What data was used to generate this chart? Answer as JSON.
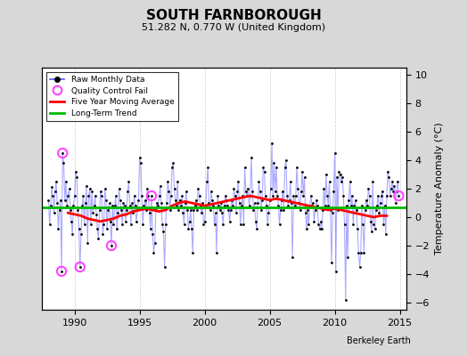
{
  "title": "SOUTH FARNBOROUGH",
  "subtitle": "51.282 N, 0.770 W (United Kingdom)",
  "ylabel": "Temperature Anomaly (°C)",
  "watermark": "Berkeley Earth",
  "ylim": [
    -6.5,
    10.5
  ],
  "xlim": [
    1987.5,
    2015.5
  ],
  "yticks": [
    -6,
    -4,
    -2,
    0,
    2,
    4,
    6,
    8,
    10
  ],
  "xticks": [
    1990,
    1995,
    2000,
    2005,
    2010,
    2015
  ],
  "fig_bg_color": "#d8d8d8",
  "plot_bg_color": "#ffffff",
  "grid_color": "#cccccc",
  "line_color": "#5555ff",
  "line_alpha": 0.5,
  "marker_color": "#000000",
  "moving_avg_color": "#ff0000",
  "trend_color": "#00bb00",
  "qc_fail_color": "#ff44ff",
  "trend_value": 0.68,
  "raw_data": [
    [
      1988.0,
      1.2
    ],
    [
      1988.083,
      -0.5
    ],
    [
      1988.167,
      0.8
    ],
    [
      1988.25,
      2.1
    ],
    [
      1988.333,
      1.5
    ],
    [
      1988.417,
      0.3
    ],
    [
      1988.5,
      1.8
    ],
    [
      1988.583,
      2.5
    ],
    [
      1988.667,
      1.0
    ],
    [
      1988.75,
      -0.8
    ],
    [
      1988.833,
      0.5
    ],
    [
      1988.917,
      1.2
    ],
    [
      1989.0,
      -3.8
    ],
    [
      1989.083,
      4.5
    ],
    [
      1989.167,
      3.8
    ],
    [
      1989.25,
      1.2
    ],
    [
      1989.333,
      2.5
    ],
    [
      1989.417,
      0.8
    ],
    [
      1989.5,
      1.5
    ],
    [
      1989.583,
      2.0
    ],
    [
      1989.667,
      0.5
    ],
    [
      1989.75,
      -0.3
    ],
    [
      1989.833,
      -1.2
    ],
    [
      1989.917,
      0.8
    ],
    [
      1990.0,
      1.5
    ],
    [
      1990.083,
      3.2
    ],
    [
      1990.167,
      2.8
    ],
    [
      1990.25,
      0.5
    ],
    [
      1990.333,
      -0.8
    ],
    [
      1990.417,
      -3.5
    ],
    [
      1990.5,
      -1.2
    ],
    [
      1990.583,
      0.8
    ],
    [
      1990.667,
      1.5
    ],
    [
      1990.75,
      -0.5
    ],
    [
      1990.833,
      1.0
    ],
    [
      1990.917,
      2.2
    ],
    [
      1991.0,
      -1.8
    ],
    [
      1991.083,
      1.5
    ],
    [
      1991.167,
      2.0
    ],
    [
      1991.25,
      -0.5
    ],
    [
      1991.333,
      1.8
    ],
    [
      1991.417,
      0.3
    ],
    [
      1991.5,
      0.8
    ],
    [
      1991.583,
      1.5
    ],
    [
      1991.667,
      0.2
    ],
    [
      1991.75,
      -0.8
    ],
    [
      1991.833,
      -1.5
    ],
    [
      1991.917,
      0.5
    ],
    [
      1992.0,
      1.8
    ],
    [
      1992.083,
      1.5
    ],
    [
      1992.167,
      -1.2
    ],
    [
      1992.25,
      -0.5
    ],
    [
      1992.333,
      2.0
    ],
    [
      1992.417,
      1.2
    ],
    [
      1992.5,
      -0.8
    ],
    [
      1992.583,
      0.5
    ],
    [
      1992.667,
      1.0
    ],
    [
      1992.75,
      -0.3
    ],
    [
      1992.833,
      -2.0
    ],
    [
      1992.917,
      0.8
    ],
    [
      1993.0,
      -0.5
    ],
    [
      1993.083,
      0.8
    ],
    [
      1993.167,
      1.5
    ],
    [
      1993.25,
      -0.8
    ],
    [
      1993.333,
      0.3
    ],
    [
      1993.417,
      2.0
    ],
    [
      1993.5,
      1.2
    ],
    [
      1993.583,
      0.5
    ],
    [
      1993.667,
      -0.5
    ],
    [
      1993.75,
      1.0
    ],
    [
      1993.833,
      0.8
    ],
    [
      1993.917,
      -0.3
    ],
    [
      1994.0,
      0.5
    ],
    [
      1994.083,
      1.8
    ],
    [
      1994.167,
      2.5
    ],
    [
      1994.25,
      0.8
    ],
    [
      1994.333,
      -0.5
    ],
    [
      1994.417,
      1.0
    ],
    [
      1994.5,
      0.3
    ],
    [
      1994.583,
      1.5
    ],
    [
      1994.667,
      0.8
    ],
    [
      1994.75,
      -0.3
    ],
    [
      1994.833,
      0.5
    ],
    [
      1994.917,
      1.2
    ],
    [
      1995.0,
      4.2
    ],
    [
      1995.083,
      3.8
    ],
    [
      1995.167,
      1.5
    ],
    [
      1995.25,
      -0.5
    ],
    [
      1995.333,
      0.8
    ],
    [
      1995.417,
      1.2
    ],
    [
      1995.5,
      0.5
    ],
    [
      1995.583,
      2.0
    ],
    [
      1995.667,
      1.5
    ],
    [
      1995.75,
      0.3
    ],
    [
      1995.833,
      -0.8
    ],
    [
      1995.917,
      1.5
    ],
    [
      1996.0,
      -1.2
    ],
    [
      1996.083,
      -2.5
    ],
    [
      1996.167,
      -1.8
    ],
    [
      1996.25,
      0.5
    ],
    [
      1996.333,
      1.0
    ],
    [
      1996.417,
      0.8
    ],
    [
      1996.5,
      1.5
    ],
    [
      1996.583,
      2.2
    ],
    [
      1996.667,
      1.0
    ],
    [
      1996.75,
      -0.5
    ],
    [
      1996.833,
      -1.0
    ],
    [
      1996.917,
      -3.5
    ],
    [
      1997.0,
      -0.5
    ],
    [
      1997.083,
      1.0
    ],
    [
      1997.167,
      2.5
    ],
    [
      1997.25,
      1.8
    ],
    [
      1997.333,
      0.5
    ],
    [
      1997.417,
      1.5
    ],
    [
      1997.5,
      3.5
    ],
    [
      1997.583,
      3.8
    ],
    [
      1997.667,
      2.0
    ],
    [
      1997.75,
      1.2
    ],
    [
      1997.833,
      0.8
    ],
    [
      1997.917,
      2.5
    ],
    [
      1998.0,
      0.5
    ],
    [
      1998.083,
      1.2
    ],
    [
      1998.167,
      0.8
    ],
    [
      1998.25,
      1.5
    ],
    [
      1998.333,
      0.3
    ],
    [
      1998.417,
      -0.5
    ],
    [
      1998.5,
      1.0
    ],
    [
      1998.583,
      1.8
    ],
    [
      1998.667,
      0.5
    ],
    [
      1998.75,
      -0.8
    ],
    [
      1998.833,
      -0.3
    ],
    [
      1998.917,
      0.5
    ],
    [
      1999.0,
      -0.8
    ],
    [
      1999.083,
      -2.5
    ],
    [
      1999.167,
      0.5
    ],
    [
      1999.25,
      0.8
    ],
    [
      1999.333,
      1.2
    ],
    [
      1999.417,
      0.5
    ],
    [
      1999.5,
      2.0
    ],
    [
      1999.583,
      1.5
    ],
    [
      1999.667,
      0.8
    ],
    [
      1999.75,
      0.3
    ],
    [
      1999.833,
      1.0
    ],
    [
      1999.917,
      -0.5
    ],
    [
      2000.0,
      -0.3
    ],
    [
      2000.083,
      0.8
    ],
    [
      2000.167,
      2.5
    ],
    [
      2000.25,
      3.5
    ],
    [
      2000.333,
      1.0
    ],
    [
      2000.417,
      0.5
    ],
    [
      2000.5,
      1.8
    ],
    [
      2000.583,
      1.2
    ],
    [
      2000.667,
      0.8
    ],
    [
      2000.75,
      -0.5
    ],
    [
      2000.833,
      0.3
    ],
    [
      2000.917,
      -2.5
    ],
    [
      2001.0,
      1.5
    ],
    [
      2001.083,
      0.8
    ],
    [
      2001.167,
      0.5
    ],
    [
      2001.25,
      1.0
    ],
    [
      2001.333,
      0.3
    ],
    [
      2001.417,
      -0.5
    ],
    [
      2001.5,
      0.8
    ],
    [
      2001.583,
      1.5
    ],
    [
      2001.667,
      1.2
    ],
    [
      2001.75,
      0.8
    ],
    [
      2001.833,
      0.5
    ],
    [
      2001.917,
      -0.3
    ],
    [
      2002.0,
      0.5
    ],
    [
      2002.083,
      1.2
    ],
    [
      2002.167,
      0.8
    ],
    [
      2002.25,
      2.0
    ],
    [
      2002.333,
      1.5
    ],
    [
      2002.417,
      0.3
    ],
    [
      2002.5,
      1.8
    ],
    [
      2002.583,
      2.5
    ],
    [
      2002.667,
      1.0
    ],
    [
      2002.75,
      -0.5
    ],
    [
      2002.833,
      0.8
    ],
    [
      2002.917,
      1.5
    ],
    [
      2003.0,
      -0.5
    ],
    [
      2003.083,
      3.5
    ],
    [
      2003.167,
      1.8
    ],
    [
      2003.25,
      1.5
    ],
    [
      2003.333,
      2.0
    ],
    [
      2003.417,
      0.8
    ],
    [
      2003.5,
      1.5
    ],
    [
      2003.583,
      4.2
    ],
    [
      2003.667,
      1.8
    ],
    [
      2003.75,
      0.5
    ],
    [
      2003.833,
      1.0
    ],
    [
      2003.917,
      -0.3
    ],
    [
      2004.0,
      -0.8
    ],
    [
      2004.083,
      1.0
    ],
    [
      2004.167,
      2.5
    ],
    [
      2004.25,
      1.8
    ],
    [
      2004.333,
      0.5
    ],
    [
      2004.417,
      1.2
    ],
    [
      2004.5,
      3.5
    ],
    [
      2004.583,
      3.2
    ],
    [
      2004.667,
      1.5
    ],
    [
      2004.75,
      0.8
    ],
    [
      2004.833,
      -0.5
    ],
    [
      2004.917,
      0.3
    ],
    [
      2005.0,
      1.2
    ],
    [
      2005.083,
      2.0
    ],
    [
      2005.167,
      5.2
    ],
    [
      2005.25,
      1.5
    ],
    [
      2005.333,
      3.8
    ],
    [
      2005.417,
      1.8
    ],
    [
      2005.5,
      3.5
    ],
    [
      2005.583,
      1.5
    ],
    [
      2005.667,
      0.8
    ],
    [
      2005.75,
      -0.5
    ],
    [
      2005.833,
      0.5
    ],
    [
      2005.917,
      1.2
    ],
    [
      2006.0,
      1.8
    ],
    [
      2006.083,
      0.5
    ],
    [
      2006.167,
      3.5
    ],
    [
      2006.25,
      4.0
    ],
    [
      2006.333,
      1.5
    ],
    [
      2006.417,
      0.8
    ],
    [
      2006.5,
      1.2
    ],
    [
      2006.583,
      2.5
    ],
    [
      2006.667,
      1.0
    ],
    [
      2006.75,
      -2.8
    ],
    [
      2006.833,
      1.5
    ],
    [
      2006.917,
      0.8
    ],
    [
      2007.0,
      1.5
    ],
    [
      2007.083,
      3.5
    ],
    [
      2007.167,
      2.0
    ],
    [
      2007.25,
      1.0
    ],
    [
      2007.333,
      0.5
    ],
    [
      2007.417,
      1.8
    ],
    [
      2007.5,
      3.2
    ],
    [
      2007.583,
      1.5
    ],
    [
      2007.667,
      2.8
    ],
    [
      2007.75,
      0.3
    ],
    [
      2007.833,
      -0.8
    ],
    [
      2007.917,
      0.5
    ],
    [
      2008.0,
      -0.5
    ],
    [
      2008.083,
      0.8
    ],
    [
      2008.167,
      1.5
    ],
    [
      2008.25,
      0.8
    ],
    [
      2008.333,
      1.0
    ],
    [
      2008.417,
      -0.3
    ],
    [
      2008.5,
      0.5
    ],
    [
      2008.583,
      1.2
    ],
    [
      2008.667,
      0.8
    ],
    [
      2008.75,
      -0.5
    ],
    [
      2008.833,
      -0.8
    ],
    [
      2008.917,
      -0.3
    ],
    [
      2009.0,
      -0.8
    ],
    [
      2009.083,
      0.5
    ],
    [
      2009.167,
      2.0
    ],
    [
      2009.25,
      0.8
    ],
    [
      2009.333,
      3.0
    ],
    [
      2009.417,
      1.5
    ],
    [
      2009.5,
      0.8
    ],
    [
      2009.583,
      2.5
    ],
    [
      2009.667,
      0.5
    ],
    [
      2009.75,
      -3.2
    ],
    [
      2009.833,
      0.3
    ],
    [
      2009.917,
      1.8
    ],
    [
      2010.0,
      4.5
    ],
    [
      2010.083,
      -3.8
    ],
    [
      2010.167,
      2.8
    ],
    [
      2010.25,
      0.5
    ],
    [
      2010.333,
      3.2
    ],
    [
      2010.417,
      3.0
    ],
    [
      2010.5,
      2.5
    ],
    [
      2010.583,
      2.8
    ],
    [
      2010.667,
      1.5
    ],
    [
      2010.75,
      -0.5
    ],
    [
      2010.833,
      -5.8
    ],
    [
      2010.917,
      0.8
    ],
    [
      2011.0,
      -2.8
    ],
    [
      2011.083,
      1.2
    ],
    [
      2011.167,
      2.5
    ],
    [
      2011.25,
      0.8
    ],
    [
      2011.333,
      1.5
    ],
    [
      2011.417,
      -0.5
    ],
    [
      2011.5,
      0.8
    ],
    [
      2011.583,
      1.2
    ],
    [
      2011.667,
      0.5
    ],
    [
      2011.75,
      -0.8
    ],
    [
      2011.833,
      -2.5
    ],
    [
      2011.917,
      -3.5
    ],
    [
      2012.0,
      -2.5
    ],
    [
      2012.083,
      0.8
    ],
    [
      2012.167,
      -0.5
    ],
    [
      2012.25,
      -2.5
    ],
    [
      2012.333,
      0.5
    ],
    [
      2012.417,
      1.2
    ],
    [
      2012.5,
      0.8
    ],
    [
      2012.583,
      2.0
    ],
    [
      2012.667,
      1.5
    ],
    [
      2012.75,
      -0.3
    ],
    [
      2012.833,
      -1.0
    ],
    [
      2012.917,
      2.5
    ],
    [
      2013.0,
      -0.5
    ],
    [
      2013.083,
      -0.8
    ],
    [
      2013.167,
      0.5
    ],
    [
      2013.25,
      0.8
    ],
    [
      2013.333,
      1.5
    ],
    [
      2013.417,
      0.3
    ],
    [
      2013.5,
      1.0
    ],
    [
      2013.583,
      1.5
    ],
    [
      2013.667,
      1.8
    ],
    [
      2013.75,
      -0.5
    ],
    [
      2013.833,
      0.8
    ],
    [
      2013.917,
      -1.2
    ],
    [
      2014.0,
      1.5
    ],
    [
      2014.083,
      3.2
    ],
    [
      2014.167,
      2.8
    ],
    [
      2014.25,
      1.5
    ],
    [
      2014.333,
      2.0
    ],
    [
      2014.417,
      2.5
    ],
    [
      2014.5,
      1.8
    ],
    [
      2014.583,
      2.2
    ],
    [
      2014.667,
      1.0
    ],
    [
      2014.75,
      1.8
    ],
    [
      2014.833,
      2.5
    ],
    [
      2014.917,
      1.5
    ]
  ],
  "qc_fail_points": [
    [
      1989.0,
      -3.8
    ],
    [
      1989.083,
      4.5
    ],
    [
      1990.417,
      -3.5
    ],
    [
      1992.833,
      -2.0
    ],
    [
      1995.917,
      1.5
    ],
    [
      2014.917,
      1.5
    ]
  ],
  "moving_avg": [
    [
      1989.5,
      0.3
    ],
    [
      1990.0,
      0.2
    ],
    [
      1990.5,
      0.1
    ],
    [
      1991.0,
      -0.1
    ],
    [
      1991.5,
      -0.2
    ],
    [
      1992.0,
      -0.3
    ],
    [
      1992.5,
      -0.2
    ],
    [
      1993.0,
      -0.1
    ],
    [
      1993.5,
      0.1
    ],
    [
      1994.0,
      0.2
    ],
    [
      1994.5,
      0.4
    ],
    [
      1995.0,
      0.5
    ],
    [
      1995.5,
      0.6
    ],
    [
      1996.0,
      0.5
    ],
    [
      1996.5,
      0.4
    ],
    [
      1997.0,
      0.5
    ],
    [
      1997.5,
      0.8
    ],
    [
      1998.0,
      1.0
    ],
    [
      1998.5,
      1.1
    ],
    [
      1999.0,
      1.0
    ],
    [
      1999.5,
      0.9
    ],
    [
      2000.0,
      0.8
    ],
    [
      2000.5,
      0.9
    ],
    [
      2001.0,
      1.0
    ],
    [
      2001.5,
      1.1
    ],
    [
      2002.0,
      1.2
    ],
    [
      2002.5,
      1.3
    ],
    [
      2003.0,
      1.4
    ],
    [
      2003.5,
      1.5
    ],
    [
      2004.0,
      1.4
    ],
    [
      2004.5,
      1.3
    ],
    [
      2005.0,
      1.2
    ],
    [
      2005.5,
      1.3
    ],
    [
      2006.0,
      1.2
    ],
    [
      2006.5,
      1.1
    ],
    [
      2007.0,
      1.0
    ],
    [
      2007.5,
      0.9
    ],
    [
      2008.0,
      0.8
    ],
    [
      2008.5,
      0.7
    ],
    [
      2009.0,
      0.6
    ],
    [
      2009.5,
      0.5
    ],
    [
      2010.0,
      0.6
    ],
    [
      2010.5,
      0.5
    ],
    [
      2011.0,
      0.4
    ],
    [
      2011.5,
      0.3
    ],
    [
      2012.0,
      0.2
    ],
    [
      2012.5,
      0.1
    ],
    [
      2013.0,
      0.0
    ],
    [
      2013.5,
      0.1
    ],
    [
      2014.0,
      0.1
    ]
  ]
}
